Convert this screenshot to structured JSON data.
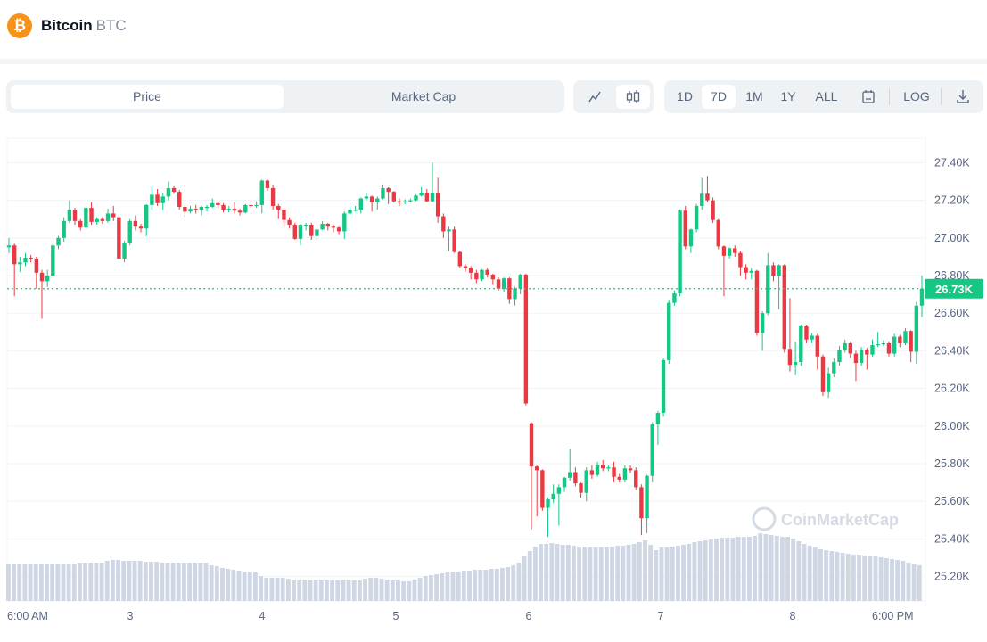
{
  "header": {
    "coin_name": "Bitcoin",
    "coin_symbol": "BTC",
    "logo_glyph": "₿",
    "logo_color": "#f7931a"
  },
  "toolbar": {
    "metric_tabs": [
      {
        "label": "Price",
        "active": true
      },
      {
        "label": "Market Cap",
        "active": false
      }
    ],
    "chart_type_icons": [
      {
        "icon": "line-chart-icon",
        "glyph": "〽",
        "active": false
      },
      {
        "icon": "candlestick-icon",
        "glyph": "ф",
        "active": true
      }
    ],
    "ranges": [
      {
        "label": "1D",
        "active": false
      },
      {
        "label": "7D",
        "active": true
      },
      {
        "label": "1M",
        "active": false
      },
      {
        "label": "1Y",
        "active": false
      },
      {
        "label": "ALL",
        "active": false
      }
    ],
    "calendar_icon": "calendar-icon",
    "log_label": "LOG",
    "download_icon": "download-icon"
  },
  "watermark": "CoinMarketCap",
  "colors": {
    "up": "#16c784",
    "down": "#ea3943",
    "volume": "#cfd6e4",
    "current_price": "#16c784"
  },
  "chart_data": {
    "type": "candlestick",
    "ylim": [
      25070,
      27530
    ],
    "y_ticks": [
      27400,
      27200,
      27000,
      26800,
      26600,
      26400,
      26200,
      26000,
      25800,
      25600,
      25400,
      25200
    ],
    "y_tick_labels": [
      "27.40K",
      "27.20K",
      "27.00K",
      "26.80K",
      "26.60K",
      "26.40K",
      "26.20K",
      "26.00K",
      "25.80K",
      "25.60K",
      "25.40K",
      "25.20K"
    ],
    "x_tick_labels": [
      "6:00 AM",
      "3",
      "4",
      "5",
      "6",
      "7",
      "8",
      "6:00 PM"
    ],
    "grid": true,
    "current_price": 26730,
    "current_price_label": "26.73K",
    "candle_fields": [
      "open",
      "high",
      "low",
      "close"
    ],
    "candles": [
      [
        26950,
        27000,
        26920,
        26960
      ],
      [
        26960,
        26970,
        26690,
        26860
      ],
      [
        26860,
        26900,
        26820,
        26870
      ],
      [
        26870,
        26920,
        26850,
        26895
      ],
      [
        26895,
        26910,
        26870,
        26890
      ],
      [
        26890,
        26900,
        26730,
        26815
      ],
      [
        26815,
        26830,
        26570,
        26770
      ],
      [
        26770,
        26830,
        26740,
        26800
      ],
      [
        26800,
        26975,
        26790,
        26960
      ],
      [
        26960,
        27010,
        26940,
        27000
      ],
      [
        27000,
        27110,
        26980,
        27090
      ],
      [
        27090,
        27200,
        27080,
        27150
      ],
      [
        27150,
        27160,
        27070,
        27090
      ],
      [
        27090,
        27100,
        27040,
        27055
      ],
      [
        27055,
        27170,
        27050,
        27160
      ],
      [
        27160,
        27190,
        27070,
        27085
      ],
      [
        27085,
        27110,
        27070,
        27100
      ],
      [
        27100,
        27110,
        27075,
        27090
      ],
      [
        27090,
        27155,
        27080,
        27130
      ],
      [
        27130,
        27170,
        27090,
        27110
      ],
      [
        27110,
        27120,
        26880,
        26890
      ],
      [
        26890,
        26985,
        26870,
        26975
      ],
      [
        26975,
        27100,
        26960,
        27090
      ],
      [
        27090,
        27120,
        27040,
        27060
      ],
      [
        27060,
        27075,
        27030,
        27050
      ],
      [
        27050,
        27180,
        27010,
        27175
      ],
      [
        27175,
        27275,
        27150,
        27230
      ],
      [
        27230,
        27260,
        27170,
        27185
      ],
      [
        27185,
        27240,
        27150,
        27220
      ],
      [
        27220,
        27300,
        27200,
        27265
      ],
      [
        27265,
        27275,
        27235,
        27245
      ],
      [
        27245,
        27255,
        27150,
        27165
      ],
      [
        27165,
        27175,
        27110,
        27140
      ],
      [
        27140,
        27170,
        27130,
        27155
      ],
      [
        27155,
        27175,
        27130,
        27150
      ],
      [
        27150,
        27170,
        27120,
        27165
      ],
      [
        27165,
        27175,
        27140,
        27165
      ],
      [
        27165,
        27210,
        27160,
        27185
      ],
      [
        27185,
        27195,
        27160,
        27175
      ],
      [
        27175,
        27185,
        27135,
        27150
      ],
      [
        27150,
        27170,
        27135,
        27155
      ],
      [
        27155,
        27190,
        27130,
        27145
      ],
      [
        27145,
        27155,
        27120,
        27135
      ],
      [
        27135,
        27180,
        27130,
        27175
      ],
      [
        27175,
        27190,
        27160,
        27170
      ],
      [
        27170,
        27195,
        27160,
        27175
      ],
      [
        27175,
        27310,
        27130,
        27305
      ],
      [
        27305,
        27310,
        27250,
        27265
      ],
      [
        27265,
        27280,
        27150,
        27170
      ],
      [
        27170,
        27180,
        27100,
        27150
      ],
      [
        27150,
        27160,
        27060,
        27095
      ],
      [
        27095,
        27110,
        27050,
        27070
      ],
      [
        27070,
        27080,
        26990,
        26995
      ],
      [
        26995,
        27075,
        26960,
        27070
      ],
      [
        27070,
        27080,
        27040,
        27070
      ],
      [
        27070,
        27080,
        26990,
        27010
      ],
      [
        27010,
        27050,
        26980,
        27045
      ],
      [
        27045,
        27090,
        27040,
        27075
      ],
      [
        27075,
        27080,
        27040,
        27060
      ],
      [
        27060,
        27070,
        27030,
        27055
      ],
      [
        27055,
        27060,
        27020,
        27035
      ],
      [
        27035,
        27140,
        26995,
        27130
      ],
      [
        27130,
        27170,
        27120,
        27150
      ],
      [
        27150,
        27170,
        27140,
        27150
      ],
      [
        27150,
        27215,
        27130,
        27210
      ],
      [
        27210,
        27240,
        27200,
        27220
      ],
      [
        27220,
        27225,
        27140,
        27190
      ],
      [
        27190,
        27220,
        27150,
        27210
      ],
      [
        27210,
        27280,
        27205,
        27265
      ],
      [
        27265,
        27270,
        27180,
        27245
      ],
      [
        27245,
        27250,
        27190,
        27195
      ],
      [
        27195,
        27210,
        27170,
        27190
      ],
      [
        27190,
        27205,
        27180,
        27195
      ],
      [
        27195,
        27210,
        27190,
        27200
      ],
      [
        27200,
        27230,
        27195,
        27225
      ],
      [
        27225,
        27270,
        27220,
        27240
      ],
      [
        27240,
        27260,
        27190,
        27195
      ],
      [
        27195,
        27400,
        27190,
        27240
      ],
      [
        27240,
        27320,
        27080,
        27115
      ],
      [
        27115,
        27130,
        27000,
        27035
      ],
      [
        27035,
        27060,
        26930,
        27045
      ],
      [
        27045,
        27060,
        26920,
        26925
      ],
      [
        26925,
        26930,
        26840,
        26850
      ],
      [
        26850,
        26860,
        26820,
        26840
      ],
      [
        26840,
        26850,
        26780,
        26815
      ],
      [
        26815,
        26830,
        26760,
        26780
      ],
      [
        26780,
        26835,
        26770,
        26830
      ],
      [
        26830,
        26840,
        26790,
        26805
      ],
      [
        26805,
        26810,
        26750,
        26780
      ],
      [
        26780,
        26790,
        26720,
        26730
      ],
      [
        26730,
        26790,
        26710,
        26785
      ],
      [
        26785,
        26790,
        26650,
        26675
      ],
      [
        26675,
        26740,
        26640,
        26730
      ],
      [
        26730,
        26810,
        26700,
        26805
      ],
      [
        26805,
        26810,
        26110,
        26120
      ],
      [
        26015,
        26020,
        25450,
        25785
      ],
      [
        25785,
        25790,
        25520,
        25765
      ],
      [
        25765,
        25770,
        25550,
        25565
      ],
      [
        25565,
        25620,
        25410,
        25610
      ],
      [
        25610,
        25690,
        25590,
        25640
      ],
      [
        25640,
        25690,
        25470,
        25675
      ],
      [
        25675,
        25730,
        25650,
        25725
      ],
      [
        25725,
        25880,
        25710,
        25755
      ],
      [
        25755,
        25780,
        25680,
        25695
      ],
      [
        25695,
        25700,
        25620,
        25645
      ],
      [
        25645,
        25780,
        25600,
        25765
      ],
      [
        25765,
        25790,
        25720,
        25740
      ],
      [
        25740,
        25810,
        25730,
        25795
      ],
      [
        25795,
        25820,
        25760,
        25775
      ],
      [
        25775,
        25790,
        25760,
        25780
      ],
      [
        25780,
        25810,
        25700,
        25730
      ],
      [
        25730,
        25745,
        25700,
        25715
      ],
      [
        25715,
        25790,
        25700,
        25775
      ],
      [
        25775,
        25790,
        25750,
        25765
      ],
      [
        25765,
        25780,
        25660,
        25675
      ],
      [
        25675,
        25690,
        25420,
        25510
      ],
      [
        25510,
        25740,
        25430,
        25735
      ],
      [
        25735,
        26020,
        25700,
        26010
      ],
      [
        26010,
        26080,
        25900,
        26070
      ],
      [
        26070,
        26360,
        26050,
        26350
      ],
      [
        26350,
        26670,
        26330,
        26655
      ],
      [
        26655,
        26720,
        26640,
        26705
      ],
      [
        26705,
        27150,
        26690,
        27145
      ],
      [
        27145,
        27170,
        26940,
        26955
      ],
      [
        26955,
        27050,
        26920,
        27045
      ],
      [
        27045,
        27180,
        27030,
        27170
      ],
      [
        27170,
        27320,
        27150,
        27235
      ],
      [
        27235,
        27330,
        27190,
        27200
      ],
      [
        27200,
        27215,
        27080,
        27095
      ],
      [
        27095,
        27100,
        26940,
        26955
      ],
      [
        26955,
        26960,
        26690,
        26905
      ],
      [
        26905,
        26950,
        26890,
        26945
      ],
      [
        26945,
        26960,
        26900,
        26920
      ],
      [
        26920,
        26930,
        26800,
        26845
      ],
      [
        26845,
        26860,
        26780,
        26815
      ],
      [
        26815,
        26840,
        26780,
        26825
      ],
      [
        26825,
        26830,
        26480,
        26495
      ],
      [
        26495,
        26610,
        26400,
        26600
      ],
      [
        26600,
        26920,
        26590,
        26855
      ],
      [
        26855,
        26870,
        26770,
        26800
      ],
      [
        26800,
        26860,
        26620,
        26855
      ],
      [
        26855,
        26860,
        26390,
        26410
      ],
      [
        26410,
        26680,
        26290,
        26325
      ],
      [
        26325,
        26450,
        26270,
        26340
      ],
      [
        26340,
        26540,
        26320,
        26530
      ],
      [
        26530,
        26535,
        26440,
        26460
      ],
      [
        26460,
        26495,
        26440,
        26480
      ],
      [
        26480,
        26490,
        26300,
        26370
      ],
      [
        26370,
        26380,
        26160,
        26180
      ],
      [
        26180,
        26310,
        26150,
        26280
      ],
      [
        26280,
        26360,
        26260,
        26340
      ],
      [
        26340,
        26425,
        26320,
        26405
      ],
      [
        26405,
        26460,
        26390,
        26440
      ],
      [
        26440,
        26450,
        26360,
        26385
      ],
      [
        26385,
        26400,
        26240,
        26335
      ],
      [
        26335,
        26420,
        26320,
        26405
      ],
      [
        26405,
        26415,
        26300,
        26380
      ],
      [
        26380,
        26460,
        26370,
        26430
      ],
      [
        26430,
        26500,
        26420,
        26435
      ],
      [
        26435,
        26455,
        26425,
        26440
      ],
      [
        26440,
        26450,
        26370,
        26385
      ],
      [
        26385,
        26490,
        26370,
        26475
      ],
      [
        26475,
        26485,
        26420,
        26440
      ],
      [
        26440,
        26520,
        26430,
        26505
      ],
      [
        26505,
        26510,
        26340,
        26395
      ],
      [
        26395,
        26660,
        26330,
        26640
      ],
      [
        26640,
        26800,
        26580,
        26730
      ]
    ],
    "volume_relative": [
      42,
      42,
      42,
      42,
      42,
      42,
      42,
      42,
      42,
      42,
      42,
      42,
      42,
      43,
      43,
      43,
      43,
      43,
      45,
      46,
      46,
      45,
      45,
      45,
      45,
      44,
      44,
      44,
      43,
      43,
      43,
      43,
      43,
      43,
      43,
      43,
      43,
      40,
      39,
      37,
      36,
      35,
      34,
      33,
      33,
      32,
      28,
      26,
      26,
      26,
      26,
      25,
      24,
      23,
      23,
      23,
      23,
      23,
      23,
      23,
      23,
      23,
      23,
      23,
      23,
      25,
      26,
      26,
      25,
      24,
      23,
      23,
      22,
      22,
      24,
      26,
      28,
      29,
      30,
      31,
      32,
      33,
      33,
      34,
      34,
      35,
      35,
      35,
      36,
      36,
      37,
      38,
      40,
      43,
      50,
      56,
      61,
      64,
      64,
      65,
      64,
      63,
      63,
      62,
      61,
      61,
      60,
      60,
      60,
      60,
      61,
      62,
      62,
      63,
      64,
      66,
      68,
      63,
      57,
      60,
      60,
      61,
      62,
      63,
      64,
      66,
      67,
      68,
      69,
      70,
      71,
      71,
      71,
      72,
      72,
      72,
      73,
      76,
      75,
      74,
      73,
      72,
      72,
      70,
      67,
      64,
      62,
      60,
      58,
      57,
      56,
      55,
      54,
      53,
      52,
      52,
      51,
      50,
      50,
      49,
      48,
      47,
      46,
      45,
      43,
      42,
      40
    ]
  }
}
